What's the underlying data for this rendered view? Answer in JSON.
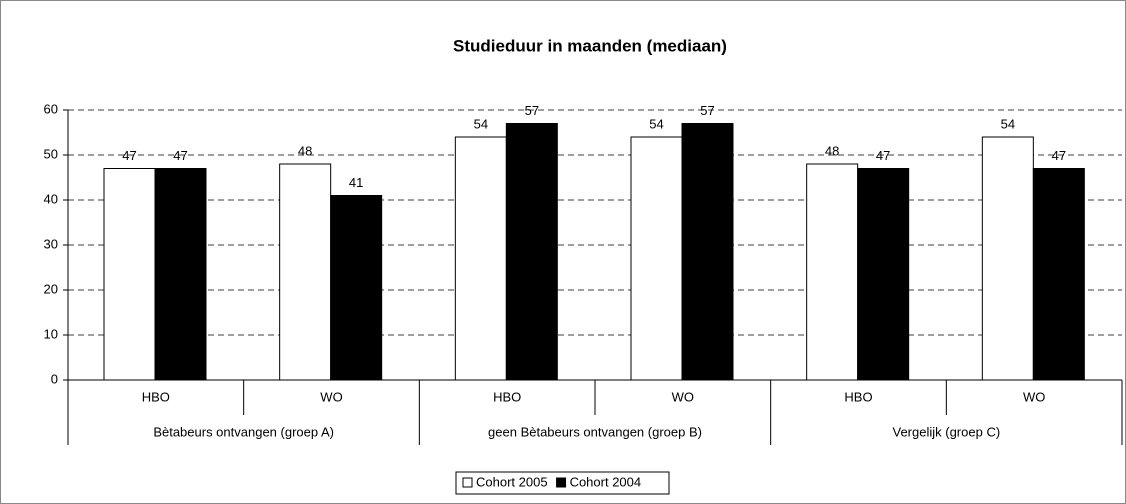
{
  "chart_data": {
    "type": "bar",
    "title": "Studieduur in maanden (mediaan)",
    "categories": [
      "HBO",
      "WO",
      "HBO",
      "WO",
      "HBO",
      "WO"
    ],
    "groups": [
      "Bètabeurs ontvangen (groep A)",
      "geen Bètabeurs ontvangen (groep B)",
      "Vergelijk (groep C)"
    ],
    "series": [
      {
        "name": "Cohort 2005",
        "color": "#ffffff",
        "values": [
          47,
          48,
          54,
          54,
          48,
          54
        ]
      },
      {
        "name": "Cohort 2004",
        "color": "#000000",
        "values": [
          47,
          41,
          57,
          57,
          47,
          47
        ]
      }
    ],
    "ylim": [
      0,
      60
    ],
    "yticks": [
      0,
      10,
      20,
      30,
      40,
      50,
      60
    ],
    "grid": true,
    "legend": "bottom"
  }
}
